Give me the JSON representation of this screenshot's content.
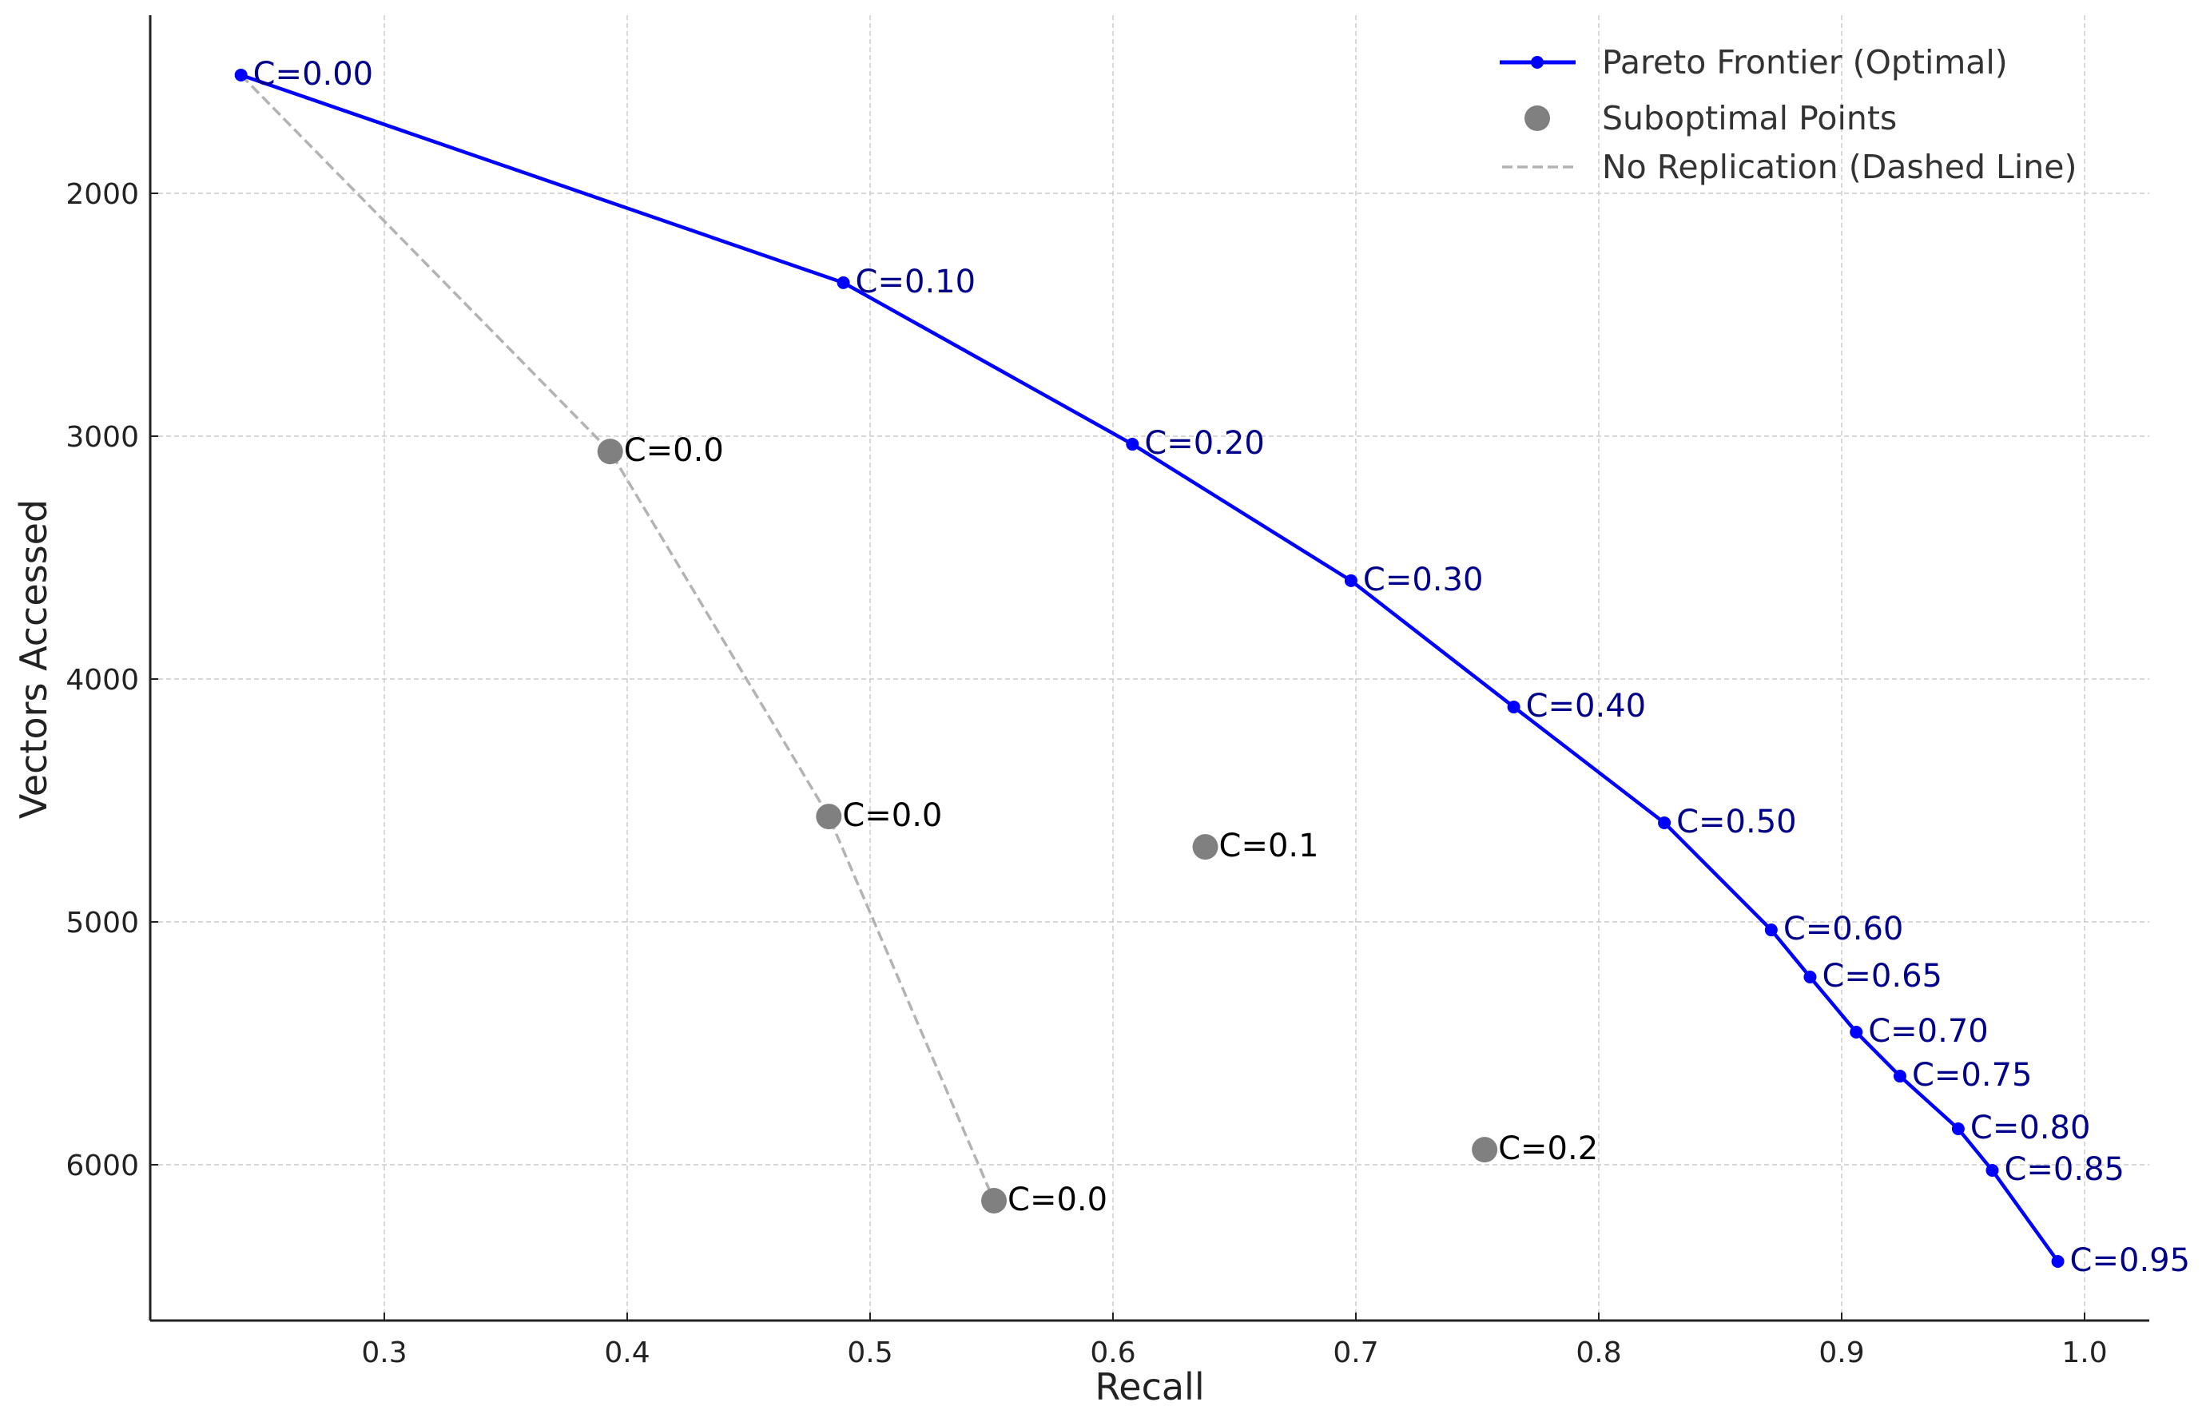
{
  "chart_data": {
    "type": "line",
    "title": "",
    "xlabel": "Recall",
    "ylabel": "Vectors Accessed",
    "xlim": [
      0.204,
      1.027
    ],
    "ylim": [
      6641,
      1266
    ],
    "y_inverted": true,
    "grid": true,
    "legend_position": "upper right",
    "x_ticks": [
      "0.3",
      "0.4",
      "0.5",
      "0.6",
      "0.7",
      "0.8",
      "0.9",
      "1.0"
    ],
    "y_ticks": [
      "2000",
      "3000",
      "4000",
      "5000",
      "6000"
    ],
    "legend": [
      {
        "label": "Pareto Frontier (Optimal)",
        "style": "line-marker",
        "color": "#0000ff"
      },
      {
        "label": "Suboptimal Points",
        "style": "marker",
        "color": "#808080"
      },
      {
        "label": "No Replication (Dashed Line)",
        "style": "dashed",
        "color": "#b3b3b3"
      }
    ],
    "series": [
      {
        "name": "Pareto Frontier (Optimal)",
        "type": "line",
        "color": "#0000ff",
        "label_color": "#00008b",
        "points": [
          {
            "label": "C=0.00",
            "x": 0.241,
            "y": 1513
          },
          {
            "label": "C=0.10",
            "x": 0.489,
            "y": 2368
          },
          {
            "label": "C=0.20",
            "x": 0.608,
            "y": 3033
          },
          {
            "label": "C=0.30",
            "x": 0.698,
            "y": 3595
          },
          {
            "label": "C=0.40",
            "x": 0.765,
            "y": 4115
          },
          {
            "label": "C=0.50",
            "x": 0.827,
            "y": 4592
          },
          {
            "label": "C=0.60",
            "x": 0.871,
            "y": 5033
          },
          {
            "label": "C=0.65",
            "x": 0.887,
            "y": 5227
          },
          {
            "label": "C=0.70",
            "x": 0.906,
            "y": 5454
          },
          {
            "label": "C=0.75",
            "x": 0.924,
            "y": 5635
          },
          {
            "label": "C=0.80",
            "x": 0.948,
            "y": 5852
          },
          {
            "label": "C=0.85",
            "x": 0.962,
            "y": 6023
          },
          {
            "label": "C=0.95",
            "x": 0.989,
            "y": 6398
          }
        ]
      },
      {
        "name": "Suboptimal Points",
        "type": "scatter",
        "color": "#808080",
        "label_color": "#000000",
        "points": [
          {
            "label": "C=0.0",
            "x": 0.393,
            "y": 3063
          },
          {
            "label": "C=0.0",
            "x": 0.483,
            "y": 4566
          },
          {
            "label": "C=0.1",
            "x": 0.638,
            "y": 4691
          },
          {
            "label": "C=0.0",
            "x": 0.551,
            "y": 6148
          },
          {
            "label": "C=0.2",
            "x": 0.753,
            "y": 5938
          }
        ]
      },
      {
        "name": "No Replication (Dashed Line)",
        "type": "line",
        "dashed": true,
        "color": "#b3b3b3",
        "points": [
          {
            "x": 0.241,
            "y": 1513
          },
          {
            "x": 0.393,
            "y": 3063
          },
          {
            "x": 0.483,
            "y": 4566
          },
          {
            "x": 0.551,
            "y": 6148
          }
        ]
      }
    ]
  }
}
